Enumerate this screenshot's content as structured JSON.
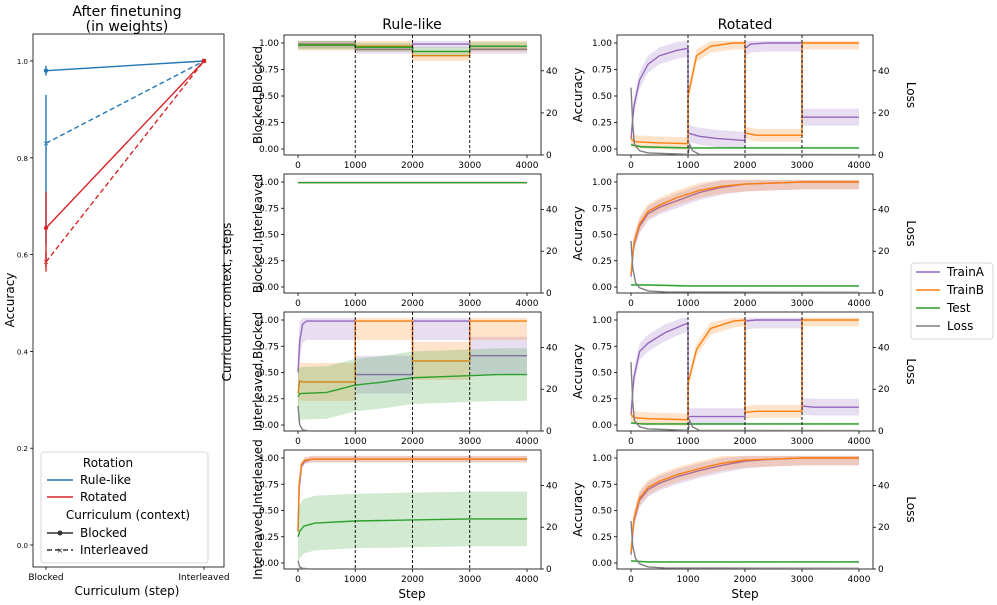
{
  "colors": {
    "rule_like": "#1f77b4",
    "rotated": "#d62728",
    "trainA": "#9467bd",
    "trainB": "#ff7f0e",
    "test": "#2ca02c",
    "loss": "#7f7f7f"
  },
  "chart_data": [
    {
      "type": "line",
      "title": "After finetuning\n(in weights)",
      "xlabel": "Curriculum (step)",
      "ylabel": "Accuracy",
      "categories": [
        "Blocked",
        "Interleaved"
      ],
      "yticks": [
        "0.0",
        "0.2",
        "0.4",
        "0.6",
        "0.8",
        "1.0"
      ],
      "ylim": [
        0.0,
        1.0
      ],
      "series": [
        {
          "rotation": "Rule-like",
          "context": "Blocked",
          "values": [
            0.98,
            1.0
          ],
          "err_low": [
            0.97,
            1.0
          ],
          "err_high": [
            0.99,
            1.0
          ]
        },
        {
          "rotation": "Rule-like",
          "context": "Interleaved",
          "values": [
            0.83,
            1.0
          ],
          "err_low": [
            0.62,
            1.0
          ],
          "err_high": [
            0.93,
            1.0
          ]
        },
        {
          "rotation": "Rotated",
          "context": "Blocked",
          "values": [
            0.655,
            1.0
          ],
          "err_low": [
            0.575,
            1.0
          ],
          "err_high": [
            0.73,
            1.0
          ]
        },
        {
          "rotation": "Rotated",
          "context": "Interleaved",
          "values": [
            0.585,
            1.0
          ],
          "err_low": [
            0.565,
            1.0
          ],
          "err_high": [
            0.605,
            1.0
          ]
        }
      ],
      "legend": {
        "placement": "lower-left",
        "rotation_title": "Rotation",
        "rotation_items": [
          "Rule-like",
          "Rotated"
        ],
        "context_title": "Curriculum (context)",
        "context_items": [
          "Blocked",
          "Interleaved"
        ]
      }
    },
    {
      "type": "line",
      "grid": "4 rows x 2 columns",
      "column_titles": [
        "Rule-like",
        "Rotated"
      ],
      "row_labels": [
        "Blocked,Blocked",
        "Blocked,Interleaved",
        "Interleaved,Blocked",
        "Interleaved,Interleaved"
      ],
      "shared_ylabel": "Curriculum: context, steps",
      "xlabel": "Step",
      "ylabel_left": "Accuracy",
      "ylabel_right": "Loss",
      "xticks": [
        0,
        1000,
        2000,
        3000,
        4000
      ],
      "xlim": [
        0,
        4000
      ],
      "ylim_accuracy": [
        0,
        1
      ],
      "yticks_accuracy": [
        "0.00",
        "0.25",
        "0.50",
        "0.75",
        "1.00"
      ],
      "yticks_loss": [
        0,
        20,
        40
      ],
      "ylim_loss": [
        0,
        57
      ],
      "block_boundaries": [
        1000,
        2000,
        3000
      ],
      "legend": {
        "placement": "center-right",
        "items": [
          "TrainA",
          "TrainB",
          "Test",
          "Loss"
        ]
      },
      "panels": [
        {
          "row": 0,
          "col": 0,
          "boundaries": true,
          "series": [
            {
              "name": "TrainA",
              "x": [
                0,
                1000,
                1001,
                2000,
                2001,
                3000,
                3001,
                4000
              ],
              "y": [
                0.99,
                0.99,
                0.94,
                0.94,
                0.99,
                0.99,
                0.94,
                0.94
              ],
              "band": 0.04
            },
            {
              "name": "TrainB",
              "x": [
                0,
                1000,
                1001,
                2000,
                2001,
                3000,
                3001,
                4000
              ],
              "y": [
                0.98,
                0.98,
                0.97,
                0.97,
                0.88,
                0.88,
                0.97,
                0.97
              ],
              "band": 0.05
            },
            {
              "name": "Test",
              "x": [
                0,
                1000,
                1001,
                2000,
                2001,
                3000,
                3001,
                4000
              ],
              "y": [
                0.98,
                0.98,
                0.96,
                0.96,
                0.92,
                0.92,
                0.97,
                0.97
              ],
              "band": 0.04
            }
          ]
        },
        {
          "row": 0,
          "col": 1,
          "boundaries": true,
          "series": [
            {
              "name": "TrainA",
              "x": [
                0,
                50,
                150,
                300,
                500,
                800,
                1000,
                1001,
                1200,
                1500,
                2000,
                2001,
                2100,
                2400,
                3000,
                3001,
                3200,
                4000
              ],
              "y": [
                0.1,
                0.4,
                0.65,
                0.8,
                0.88,
                0.93,
                0.95,
                0.15,
                0.12,
                0.1,
                0.08,
                0.95,
                0.99,
                1.0,
                1.0,
                0.3,
                0.3,
                0.3
              ],
              "band": 0.08
            },
            {
              "name": "TrainB",
              "x": [
                0,
                50,
                400,
                1000,
                1001,
                1150,
                1400,
                1800,
                2000,
                2001,
                2200,
                3000,
                3001,
                4000
              ],
              "y": [
                0.1,
                0.07,
                0.06,
                0.05,
                0.5,
                0.88,
                0.97,
                1.0,
                1.0,
                0.15,
                0.13,
                0.13,
                1.0,
                1.0
              ],
              "band": 0.06
            },
            {
              "name": "Test",
              "x": [
                0,
                200,
                1000,
                2000,
                3000,
                4000
              ],
              "y": [
                0.04,
                0.02,
                0.01,
                0.01,
                0.01,
                0.01
              ],
              "band": 0.01
            },
            {
              "name": "Loss",
              "x": [
                0,
                30,
                60,
                150,
                300,
                1000,
                1001,
                1030,
                1080,
                1200,
                4000
              ],
              "y": [
                32,
                15,
                5,
                2,
                1,
                0.3,
                0.3,
                5,
                2,
                0.3,
                0.2
              ]
            }
          ]
        },
        {
          "row": 1,
          "col": 0,
          "boundaries": false,
          "series": [
            {
              "name": "TrainA",
              "x": [
                0,
                4000
              ],
              "y": [
                0.995,
                0.995
              ]
            },
            {
              "name": "TrainB",
              "x": [
                0,
                4000
              ],
              "y": [
                0.995,
                0.995
              ]
            },
            {
              "name": "Test",
              "x": [
                0,
                4000
              ],
              "y": [
                0.993,
                0.993
              ]
            }
          ]
        },
        {
          "row": 1,
          "col": 1,
          "boundaries": false,
          "series": [
            {
              "name": "TrainA",
              "x": [
                0,
                50,
                150,
                300,
                500,
                800,
                1200,
                1600,
                2000,
                2500,
                3000,
                4000
              ],
              "y": [
                0.1,
                0.4,
                0.58,
                0.7,
                0.76,
                0.82,
                0.9,
                0.95,
                0.98,
                0.99,
                1.0,
                1.0
              ],
              "band": 0.07
            },
            {
              "name": "TrainB",
              "x": [
                0,
                50,
                150,
                300,
                500,
                800,
                1200,
                1600,
                2000,
                2500,
                3000,
                4000
              ],
              "y": [
                0.12,
                0.42,
                0.6,
                0.72,
                0.78,
                0.85,
                0.92,
                0.96,
                0.98,
                0.99,
                1.0,
                1.0
              ],
              "band": 0.07
            },
            {
              "name": "Test",
              "x": [
                0,
                300,
                1000,
                2000,
                4000
              ],
              "y": [
                0.02,
                0.02,
                0.01,
                0.01,
                0.01
              ],
              "band": 0.01
            },
            {
              "name": "Loss",
              "x": [
                0,
                30,
                80,
                150,
                300,
                600,
                4000
              ],
              "y": [
                25,
                12,
                5,
                2.5,
                1,
                0.5,
                0.3
              ]
            }
          ]
        },
        {
          "row": 2,
          "col": 0,
          "boundaries": true,
          "series": [
            {
              "name": "TrainA",
              "x": [
                0,
                30,
                80,
                150,
                1000,
                1001,
                2000,
                2001,
                3000,
                3001,
                4000
              ],
              "y": [
                0.5,
                0.8,
                0.96,
                0.99,
                0.99,
                0.48,
                0.48,
                0.99,
                0.99,
                0.66,
                0.66
              ],
              "band": 0.18
            },
            {
              "name": "TrainB",
              "x": [
                0,
                30,
                80,
                150,
                1000,
                1001,
                2000,
                2001,
                3000,
                3001,
                4000
              ],
              "y": [
                0.3,
                0.42,
                0.41,
                0.41,
                0.41,
                0.99,
                0.99,
                0.61,
                0.61,
                0.99,
                0.99
              ],
              "band": 0.18
            },
            {
              "name": "Test",
              "x": [
                0,
                30,
                500,
                1000,
                1500,
                2000,
                2500,
                3000,
                3500,
                4000
              ],
              "y": [
                0.27,
                0.3,
                0.31,
                0.38,
                0.41,
                0.45,
                0.46,
                0.47,
                0.48,
                0.48
              ],
              "band": 0.25
            },
            {
              "name": "Loss",
              "x": [
                0,
                30,
                80,
                200
              ],
              "y": [
                12,
                3,
                0.5,
                0.1
              ]
            }
          ]
        },
        {
          "row": 2,
          "col": 1,
          "boundaries": true,
          "series": [
            {
              "name": "TrainA",
              "x": [
                0,
                50,
                150,
                300,
                600,
                900,
                1000,
                1001,
                1500,
                2000,
                2001,
                2200,
                3000,
                3001,
                3200,
                4000
              ],
              "y": [
                0.1,
                0.45,
                0.7,
                0.78,
                0.88,
                0.95,
                0.97,
                0.08,
                0.08,
                0.08,
                0.99,
                1.0,
                1.0,
                0.18,
                0.17,
                0.17
              ],
              "band": 0.08
            },
            {
              "name": "TrainB",
              "x": [
                0,
                50,
                300,
                1000,
                1001,
                1150,
                1400,
                1800,
                2000,
                2001,
                2200,
                3000,
                3001,
                4000
              ],
              "y": [
                0.1,
                0.07,
                0.06,
                0.05,
                0.4,
                0.72,
                0.92,
                0.99,
                1.0,
                0.12,
                0.13,
                0.13,
                1.0,
                1.0
              ],
              "band": 0.06
            },
            {
              "name": "Test",
              "x": [
                0,
                200,
                1000,
                2000,
                3000,
                4000
              ],
              "y": [
                0.02,
                0.01,
                0.01,
                0.01,
                0.01,
                0.01
              ],
              "band": 0.01
            },
            {
              "name": "Loss",
              "x": [
                0,
                30,
                60,
                150,
                300,
                1000,
                1001,
                1030,
                1080,
                1200,
                4000
              ],
              "y": [
                33,
                14,
                5,
                2,
                1,
                0.3,
                0.3,
                5,
                2,
                0.3,
                0.2
              ]
            }
          ]
        },
        {
          "row": 3,
          "col": 0,
          "boundaries": true,
          "series": [
            {
              "name": "TrainA",
              "x": [
                0,
                20,
                60,
                120,
                250,
                4000
              ],
              "y": [
                0.3,
                0.7,
                0.92,
                0.97,
                0.99,
                0.99
              ],
              "band": 0.03
            },
            {
              "name": "TrainB",
              "x": [
                0,
                20,
                60,
                120,
                250,
                4000
              ],
              "y": [
                0.3,
                0.75,
                0.94,
                0.98,
                0.99,
                0.99
              ],
              "band": 0.03
            },
            {
              "name": "Test",
              "x": [
                0,
                30,
                100,
                300,
                1000,
                2000,
                3000,
                4000
              ],
              "y": [
                0.25,
                0.3,
                0.35,
                0.38,
                0.4,
                0.41,
                0.42,
                0.42
              ],
              "band": 0.26
            },
            {
              "name": "Loss",
              "x": [
                0,
                30,
                80,
                200
              ],
              "y": [
                4,
                1,
                0.3,
                0.1
              ]
            }
          ]
        },
        {
          "row": 3,
          "col": 1,
          "boundaries": false,
          "series": [
            {
              "name": "TrainA",
              "x": [
                0,
                50,
                150,
                300,
                500,
                800,
                1200,
                1600,
                2000,
                2500,
                3000,
                4000
              ],
              "y": [
                0.08,
                0.4,
                0.6,
                0.7,
                0.76,
                0.82,
                0.88,
                0.93,
                0.97,
                0.99,
                1.0,
                1.0
              ],
              "band": 0.07
            },
            {
              "name": "TrainB",
              "x": [
                0,
                50,
                150,
                300,
                500,
                800,
                1200,
                1600,
                2000,
                2500,
                3000,
                4000
              ],
              "y": [
                0.1,
                0.42,
                0.62,
                0.72,
                0.78,
                0.84,
                0.9,
                0.95,
                0.98,
                0.99,
                1.0,
                1.0
              ],
              "band": 0.07
            },
            {
              "name": "Test",
              "x": [
                0,
                300,
                1000,
                2000,
                4000
              ],
              "y": [
                0.02,
                0.01,
                0.01,
                0.01,
                0.01
              ],
              "band": 0.01
            },
            {
              "name": "Loss",
              "x": [
                0,
                30,
                80,
                150,
                300,
                600,
                4000
              ],
              "y": [
                23,
                11,
                5,
                2.5,
                1,
                0.5,
                0.3
              ]
            }
          ]
        }
      ]
    }
  ]
}
